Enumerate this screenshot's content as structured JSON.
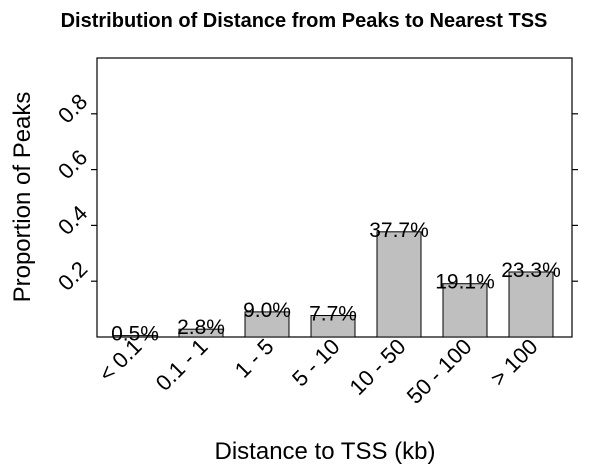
{
  "chart_data": {
    "type": "bar",
    "title": "Distribution of Distance from Peaks to Nearest TSS",
    "xlabel": "Distance to TSS (kb)",
    "ylabel": "Proportion of Peaks",
    "categories": [
      "< 0.1",
      "0.1 - 1",
      "1 - 5",
      "5 - 10",
      "10 - 50",
      "50 - 100",
      "> 100"
    ],
    "values": [
      0.005,
      0.028,
      0.09,
      0.077,
      0.377,
      0.191,
      0.233
    ],
    "data_labels": [
      "0.5%",
      "2.8%",
      "9.0%",
      "7.7%",
      "37.7%",
      "19.1%",
      "23.3%"
    ],
    "ylim": [
      0,
      1.0
    ],
    "yticks": [
      0.2,
      0.4,
      0.6,
      0.8
    ],
    "ytick_labels": [
      "0.2",
      "0.4",
      "0.6",
      "0.8"
    ],
    "bar_color": "#bfbfbf",
    "grid": false,
    "legend": "none"
  }
}
